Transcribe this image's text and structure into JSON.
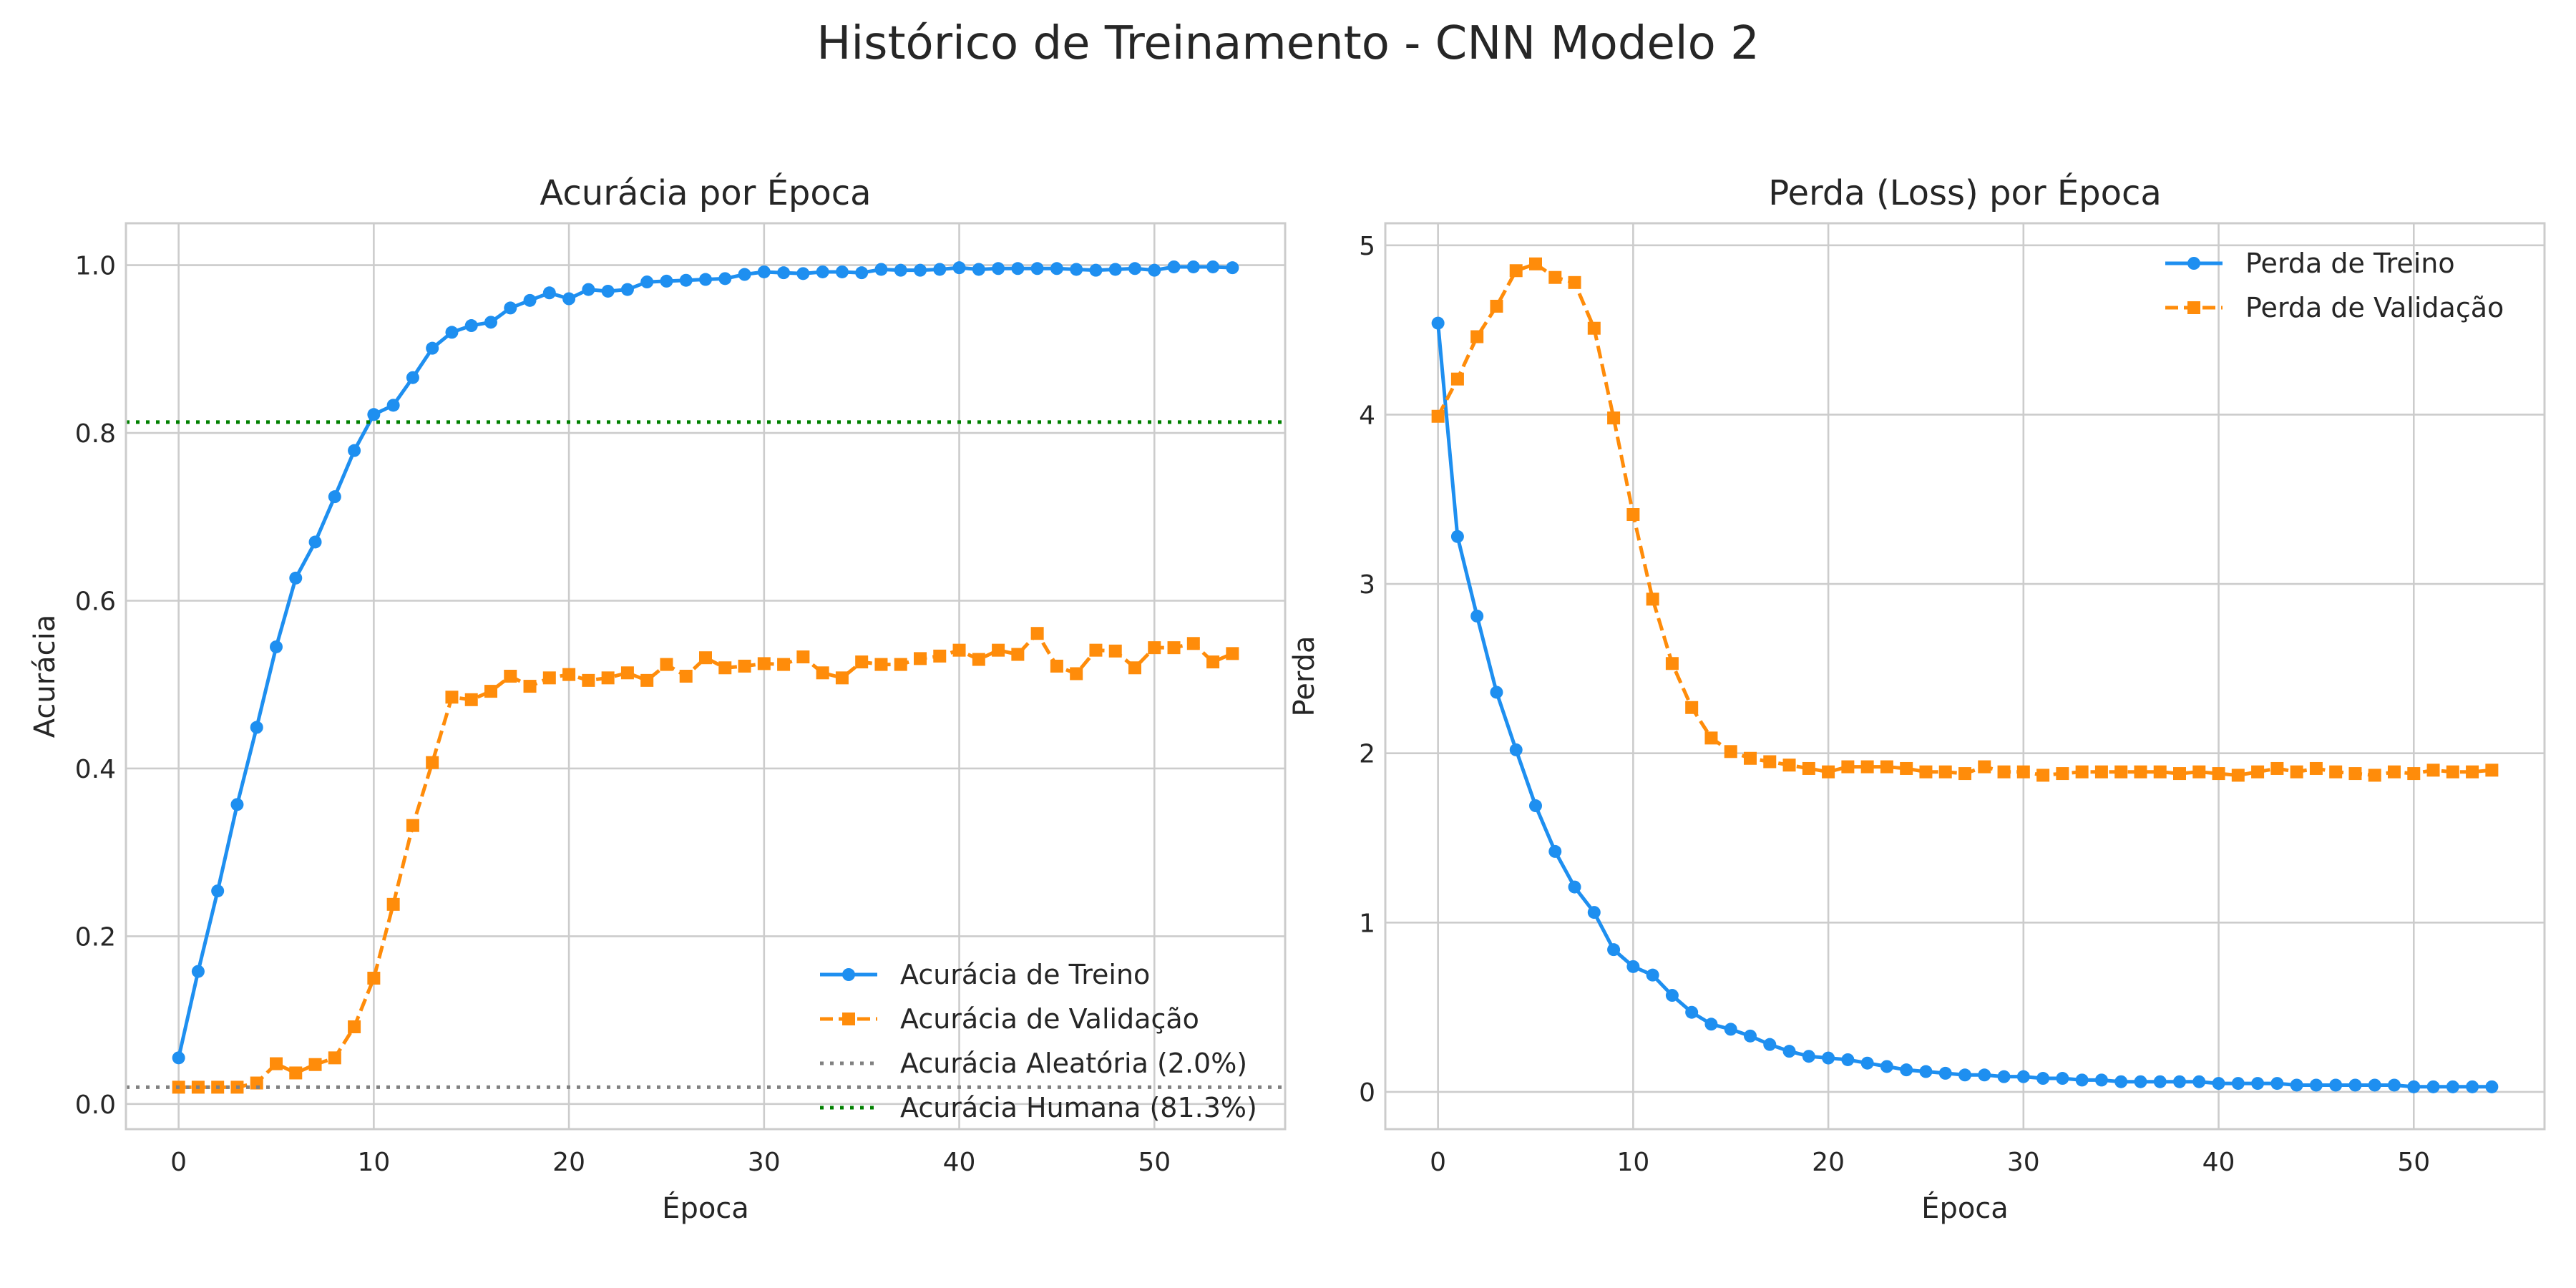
{
  "figure_title": "Histórico de Treinamento - CNN Modelo 2",
  "chart_data": [
    {
      "type": "line",
      "title": "Acurácia por Época",
      "xlabel": "Época",
      "ylabel": "Acurácia",
      "xlim": [
        -2.7,
        56.7
      ],
      "ylim": [
        -0.03,
        1.05
      ],
      "xticks": [
        0,
        10,
        20,
        30,
        40,
        50
      ],
      "yticks": [
        0.0,
        0.2,
        0.4,
        0.6,
        0.8,
        1.0
      ],
      "ytick_labels": [
        "0.0",
        "0.2",
        "0.4",
        "0.6",
        "0.8",
        "1.0"
      ],
      "grid": true,
      "legend_position": "lower-right",
      "x": [
        0,
        1,
        2,
        3,
        4,
        5,
        6,
        7,
        8,
        9,
        10,
        11,
        12,
        13,
        14,
        15,
        16,
        17,
        18,
        19,
        20,
        21,
        22,
        23,
        24,
        25,
        26,
        27,
        28,
        29,
        30,
        31,
        32,
        33,
        34,
        35,
        36,
        37,
        38,
        39,
        40,
        41,
        42,
        43,
        44,
        45,
        46,
        47,
        48,
        49,
        50,
        51,
        52,
        53,
        54
      ],
      "series": [
        {
          "name": "Acurácia de Treino",
          "color": "#1e8ff0",
          "style": "solid",
          "marker": "circle",
          "values": [
            0.055,
            0.158,
            0.254,
            0.357,
            0.449,
            0.545,
            0.627,
            0.67,
            0.724,
            0.779,
            0.822,
            0.833,
            0.866,
            0.901,
            0.92,
            0.928,
            0.932,
            0.949,
            0.958,
            0.967,
            0.96,
            0.971,
            0.969,
            0.971,
            0.98,
            0.981,
            0.982,
            0.983,
            0.984,
            0.989,
            0.992,
            0.991,
            0.99,
            0.992,
            0.992,
            0.991,
            0.995,
            0.994,
            0.994,
            0.995,
            0.997,
            0.995,
            0.996,
            0.996,
            0.996,
            0.996,
            0.995,
            0.994,
            0.995,
            0.996,
            0.994,
            0.998,
            0.998,
            0.998,
            0.997
          ]
        },
        {
          "name": "Acurácia de Validação",
          "color": "#ff8c0a",
          "style": "dashed",
          "marker": "square",
          "values": [
            0.02,
            0.02,
            0.02,
            0.02,
            0.025,
            0.048,
            0.037,
            0.047,
            0.055,
            0.092,
            0.15,
            0.238,
            0.332,
            0.407,
            0.485,
            0.482,
            0.492,
            0.51,
            0.498,
            0.508,
            0.512,
            0.505,
            0.508,
            0.514,
            0.505,
            0.524,
            0.51,
            0.532,
            0.52,
            0.522,
            0.525,
            0.524,
            0.533,
            0.514,
            0.508,
            0.527,
            0.524,
            0.524,
            0.531,
            0.534,
            0.541,
            0.53,
            0.541,
            0.536,
            0.561,
            0.522,
            0.513,
            0.541,
            0.54,
            0.52,
            0.544,
            0.544,
            0.549,
            0.527,
            0.537
          ]
        },
        {
          "name": "Acurácia Aleatória (2.0%)",
          "color": "#808080",
          "style": "dotted",
          "hline": 0.02
        },
        {
          "name": "Acurácia Humana (81.3%)",
          "color": "#008000",
          "style": "dotted",
          "hline": 0.813
        }
      ]
    },
    {
      "type": "line",
      "title": "Perda (Loss) por Época",
      "xlabel": "Época",
      "ylabel": "Perda",
      "xlim": [
        -2.7,
        56.7
      ],
      "ylim": [
        -0.22,
        5.13
      ],
      "xticks": [
        0,
        10,
        20,
        30,
        40,
        50
      ],
      "yticks": [
        0,
        1,
        2,
        3,
        4,
        5
      ],
      "ytick_labels": [
        "0",
        "1",
        "2",
        "3",
        "4",
        "5"
      ],
      "grid": true,
      "legend_position": "upper-right",
      "x": [
        0,
        1,
        2,
        3,
        4,
        5,
        6,
        7,
        8,
        9,
        10,
        11,
        12,
        13,
        14,
        15,
        16,
        17,
        18,
        19,
        20,
        21,
        22,
        23,
        24,
        25,
        26,
        27,
        28,
        29,
        30,
        31,
        32,
        33,
        34,
        35,
        36,
        37,
        38,
        39,
        40,
        41,
        42,
        43,
        44,
        45,
        46,
        47,
        48,
        49,
        50,
        51,
        52,
        53,
        54
      ],
      "series": [
        {
          "name": "Perda de Treino",
          "color": "#1e8ff0",
          "style": "solid",
          "marker": "circle",
          "values": [
            4.54,
            3.28,
            2.81,
            2.36,
            2.02,
            1.69,
            1.42,
            1.21,
            1.06,
            0.84,
            0.74,
            0.69,
            0.57,
            0.47,
            0.4,
            0.37,
            0.33,
            0.28,
            0.24,
            0.21,
            0.2,
            0.19,
            0.17,
            0.15,
            0.13,
            0.12,
            0.11,
            0.1,
            0.1,
            0.09,
            0.09,
            0.08,
            0.08,
            0.07,
            0.07,
            0.06,
            0.06,
            0.06,
            0.06,
            0.06,
            0.05,
            0.05,
            0.05,
            0.05,
            0.04,
            0.04,
            0.04,
            0.04,
            0.04,
            0.04,
            0.03,
            0.03,
            0.03,
            0.03,
            0.03
          ]
        },
        {
          "name": "Perda de Validação",
          "color": "#ff8c0a",
          "style": "dashed",
          "marker": "square",
          "values": [
            3.99,
            4.21,
            4.46,
            4.64,
            4.85,
            4.89,
            4.81,
            4.78,
            4.51,
            3.98,
            3.41,
            2.91,
            2.53,
            2.27,
            2.09,
            2.01,
            1.97,
            1.95,
            1.93,
            1.91,
            1.89,
            1.92,
            1.92,
            1.92,
            1.91,
            1.89,
            1.89,
            1.88,
            1.92,
            1.89,
            1.89,
            1.87,
            1.88,
            1.89,
            1.89,
            1.89,
            1.89,
            1.89,
            1.88,
            1.89,
            1.88,
            1.87,
            1.89,
            1.91,
            1.89,
            1.91,
            1.89,
            1.88,
            1.87,
            1.89,
            1.88,
            1.9,
            1.89,
            1.89,
            1.9
          ]
        }
      ]
    }
  ]
}
